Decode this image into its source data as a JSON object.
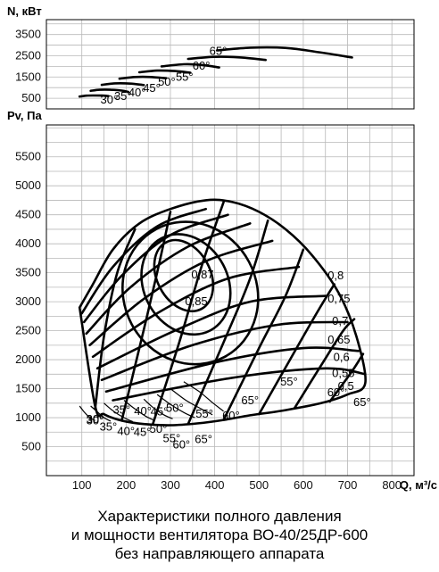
{
  "chart_data": [
    {
      "type": "line",
      "ylabel": "N, кВт",
      "yticks": [
        500,
        1500,
        2500,
        3500
      ],
      "ylim": [
        0,
        4200
      ],
      "xlim": [
        0,
        900
      ],
      "series": [
        {
          "name": "30°",
          "label_at": [
            142,
            420
          ],
          "points": [
            [
              95,
              580
            ],
            [
              110,
              620
            ],
            [
              125,
              630
            ],
            [
              145,
              625
            ],
            [
              160,
              600
            ]
          ]
        },
        {
          "name": "35°",
          "label_at": [
            173,
            590
          ],
          "points": [
            [
              120,
              850
            ],
            [
              140,
              900
            ],
            [
              165,
              900
            ],
            [
              190,
              860
            ],
            [
              205,
              800
            ]
          ]
        },
        {
          "name": "40°",
          "label_at": [
            205,
            760
          ],
          "points": [
            [
              145,
              1130
            ],
            [
              175,
              1200
            ],
            [
              210,
              1190
            ],
            [
              240,
              1120
            ]
          ]
        },
        {
          "name": "45°",
          "label_at": [
            238,
            960
          ],
          "points": [
            [
              185,
              1420
            ],
            [
              220,
              1500
            ],
            [
              255,
              1500
            ],
            [
              290,
              1440
            ]
          ]
        },
        {
          "name": "50°",
          "label_at": [
            272,
            1250
          ],
          "points": [
            [
              230,
              1720
            ],
            [
              270,
              1800
            ],
            [
              310,
              1780
            ],
            [
              345,
              1700
            ]
          ]
        },
        {
          "name": "55°",
          "label_at": [
            312,
            1500
          ],
          "points": [
            [
              280,
              2000
            ],
            [
              330,
              2100
            ],
            [
              370,
              2070
            ],
            [
              410,
              1950
            ]
          ]
        },
        {
          "name": "60°",
          "label_at": [
            350,
            2020
          ],
          "points": [
            [
              340,
              2350
            ],
            [
              400,
              2450
            ],
            [
              460,
              2420
            ],
            [
              515,
              2300
            ]
          ]
        },
        {
          "name": "65°",
          "label_at": [
            388,
            2700
          ],
          "points": [
            [
              405,
              2750
            ],
            [
              480,
              2880
            ],
            [
              560,
              2870
            ],
            [
              640,
              2650
            ],
            [
              710,
              2420
            ]
          ]
        }
      ]
    },
    {
      "type": "line",
      "xlabel": "Q, м³/с",
      "ylabel": "Pv, Па",
      "xticks": [
        100,
        200,
        300,
        400,
        500,
        600,
        700,
        800
      ],
      "yticks": [
        500,
        1000,
        1500,
        2000,
        2500,
        3000,
        3500,
        4000,
        4500,
        5000,
        5500
      ],
      "xlim": [
        20,
        850
      ],
      "ylim": [
        0,
        6050
      ],
      "grid": true,
      "pressure_curves": [
        {
          "name": "30°",
          "label_at": [
            110,
            950
          ],
          "points": [
            [
              95,
              1200
            ],
            [
              105,
              1100
            ],
            [
              118,
              1000
            ],
            [
              130,
              950
            ]
          ]
        },
        {
          "name": "35°",
          "label_at": [
            140,
            840
          ],
          "points": [
            [
              120,
              1200
            ],
            [
              135,
              1100
            ],
            [
              150,
              1000
            ],
            [
              165,
              940
            ]
          ]
        },
        {
          "name": "40°",
          "label_at": [
            180,
            760
          ],
          "points": [
            [
              150,
              1250
            ],
            [
              170,
              1120
            ],
            [
              195,
              1000
            ],
            [
              215,
              930
            ]
          ]
        },
        {
          "name": "45°",
          "label_at": [
            217,
            750
          ],
          "points": [
            [
              195,
              1300
            ],
            [
              220,
              1150
            ],
            [
              245,
              1020
            ],
            [
              265,
              950
            ]
          ]
        },
        {
          "name": "50°",
          "label_at": [
            253,
            800
          ],
          "points": [
            [
              240,
              1320
            ],
            [
              260,
              1180
            ],
            [
              285,
              1050
            ],
            [
              305,
              980
            ]
          ]
        },
        {
          "name": "55°",
          "label_at": [
            283,
            640
          ],
          "points": [
            [
              270,
              1400
            ],
            [
              300,
              1230
            ],
            [
              330,
              1090
            ],
            [
              355,
              1000
            ]
          ]
        },
        {
          "name": "60°",
          "label_at": [
            305,
            530
          ],
          "points": [
            [
              300,
              1500
            ],
            [
              335,
              1300
            ],
            [
              370,
              1150
            ],
            [
              395,
              1050
            ]
          ]
        },
        {
          "name": "65°",
          "label_at": [
            355,
            620
          ],
          "points": [
            [
              330,
              1620
            ],
            [
              365,
              1450
            ],
            [
              395,
              1260
            ],
            [
              420,
              1110
            ]
          ]
        }
      ],
      "efficiency_contours": [
        {
          "name": "0,87",
          "label_at": [
            347,
            3460
          ]
        },
        {
          "name": "0,85",
          "label_at": [
            333,
            3000
          ]
        },
        {
          "name": "0,8",
          "label_at": [
            655,
            3450
          ]
        },
        {
          "name": "0,75",
          "label_at": [
            655,
            3050
          ]
        },
        {
          "name": "0,7",
          "label_at": [
            665,
            2660
          ]
        },
        {
          "name": "0,65",
          "label_at": [
            655,
            2340
          ]
        },
        {
          "name": "0,6",
          "label_at": [
            668,
            2040
          ]
        },
        {
          "name": "0,55",
          "label_at": [
            665,
            1760
          ]
        },
        {
          "name": "0,5",
          "label_at": [
            678,
            1540
          ]
        }
      ],
      "blade_angle_labels": [
        {
          "name": "30°",
          "label_at": [
            110,
            970
          ]
        },
        {
          "name": "35°",
          "label_at": [
            170,
            1130
          ]
        },
        {
          "name": "40°",
          "label_at": [
            218,
            1110
          ]
        },
        {
          "name": "45°",
          "label_at": [
            255,
            1100
          ]
        },
        {
          "name": "50°",
          "label_at": [
            290,
            1160
          ]
        },
        {
          "name": "55°",
          "label_at": [
            357,
            1060
          ]
        },
        {
          "name": "60°",
          "label_at": [
            417,
            1030
          ]
        },
        {
          "name": "65°",
          "label_at": [
            460,
            1290
          ]
        }
      ],
      "side_angle_labels": [
        {
          "name": "65°",
          "label_at": [
            713,
            1260
          ]
        },
        {
          "name": "60°",
          "label_at": [
            654,
            1430
          ]
        },
        {
          "name": "55°",
          "label_at": [
            548,
            1620
          ]
        }
      ]
    }
  ],
  "caption": {
    "line1": "Характеристики полного давления",
    "line2": "и мощности вентилятора ВО-40/25ДР-600",
    "line3": "без направляющего аппарата"
  }
}
